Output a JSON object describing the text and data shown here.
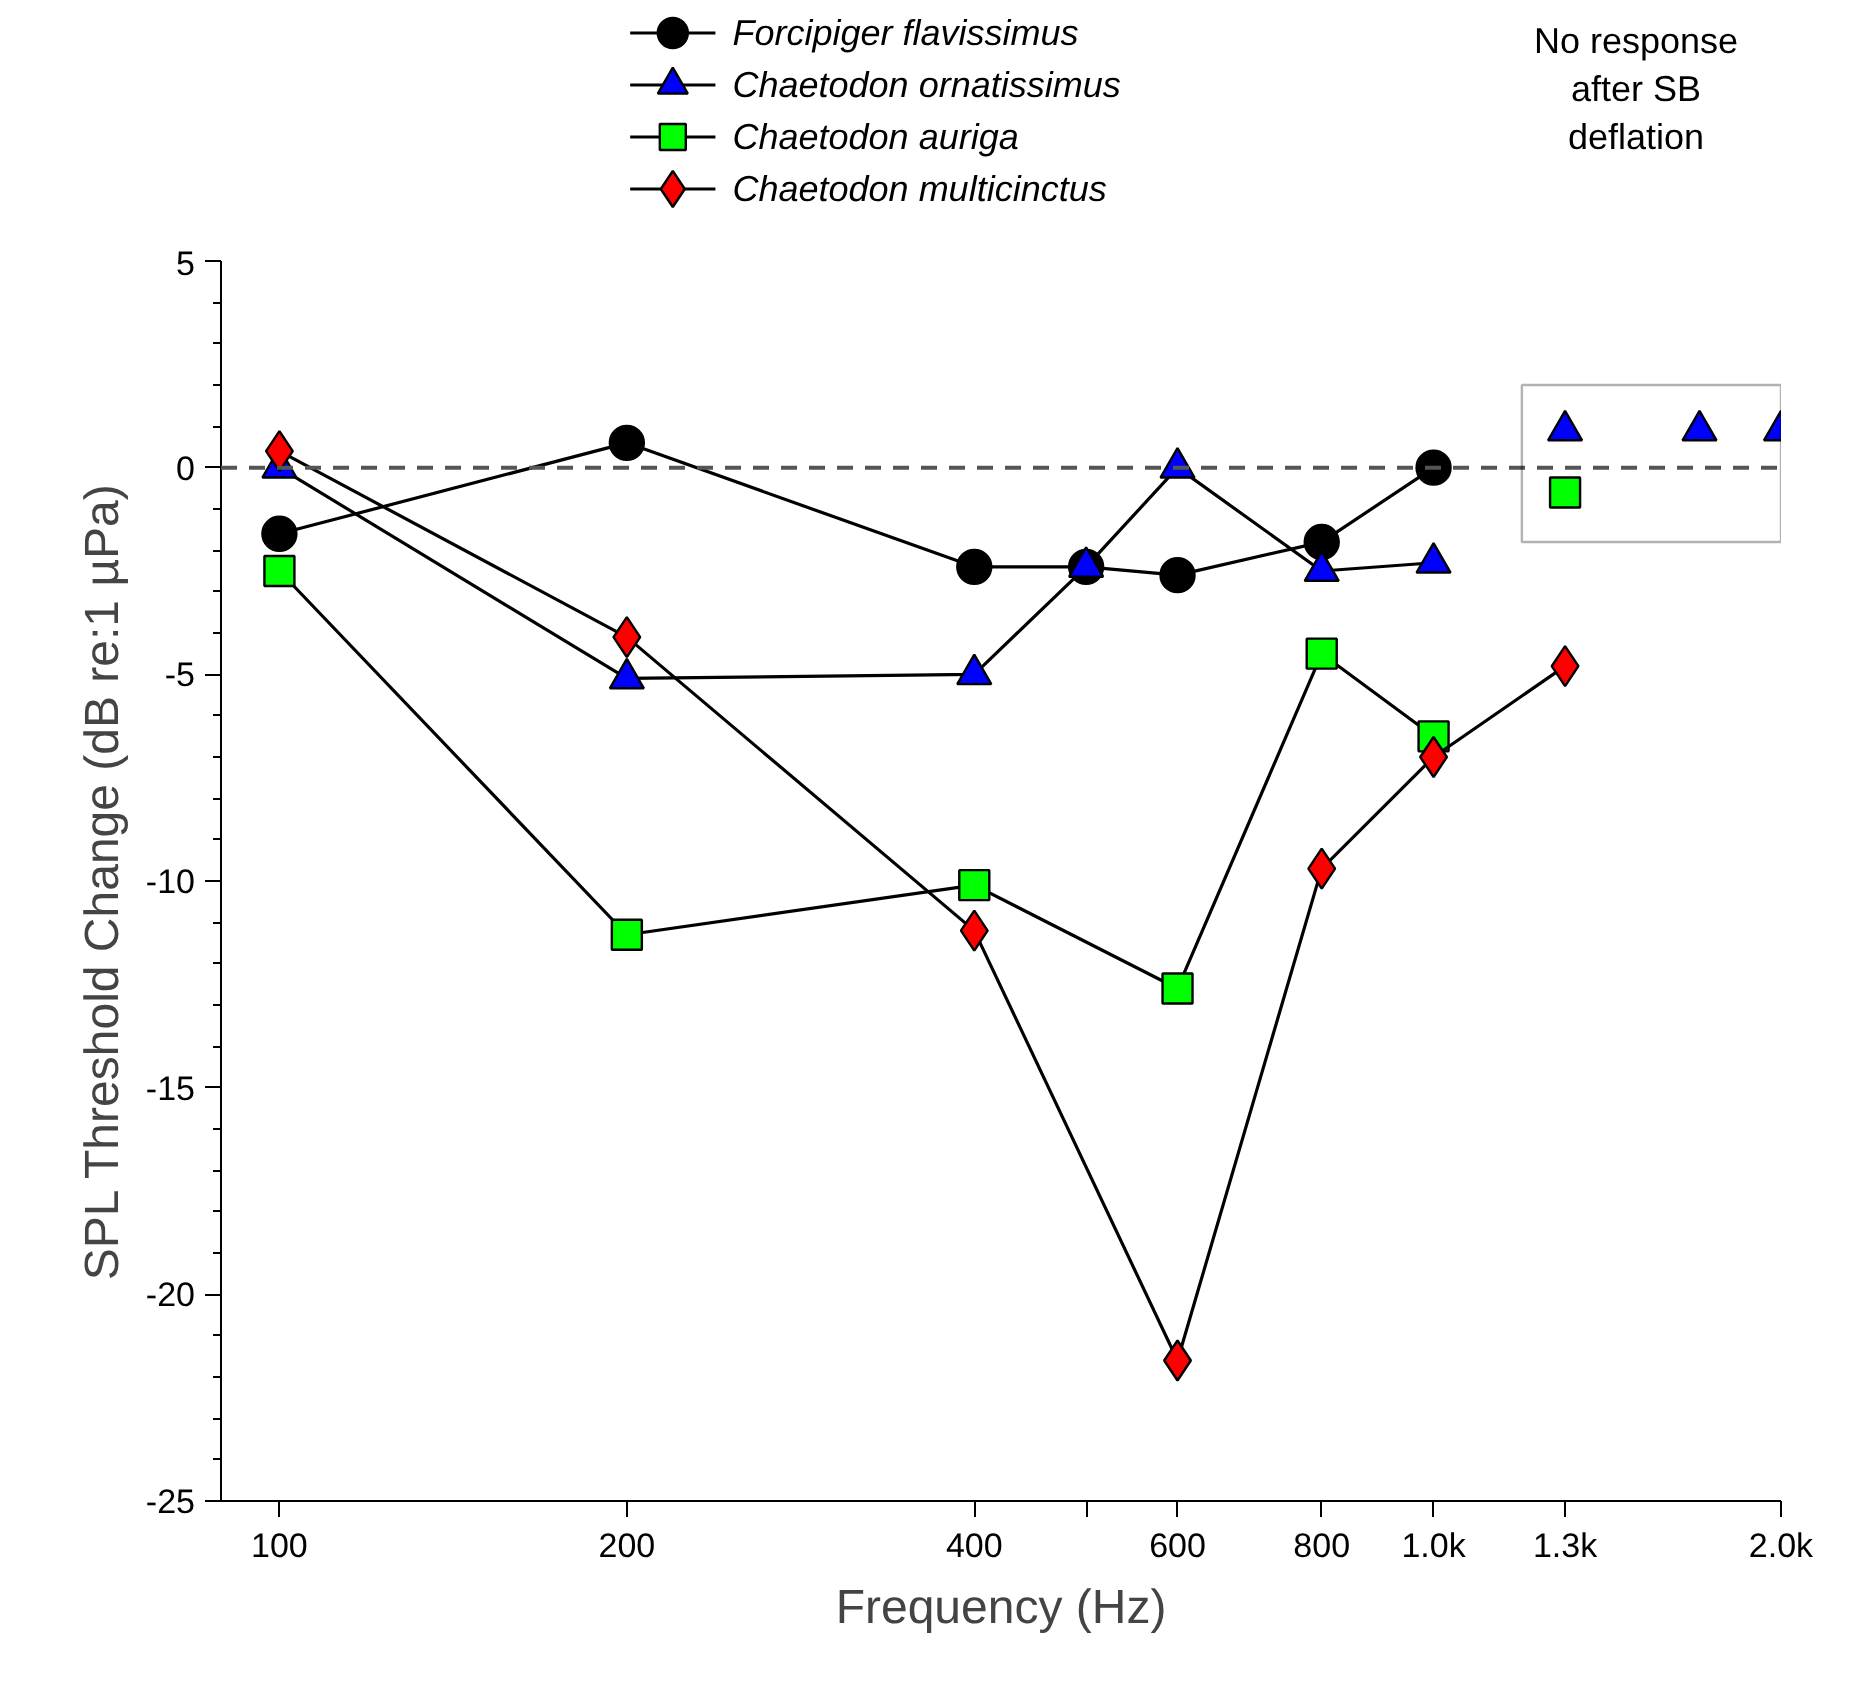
{
  "chart_data": {
    "type": "line",
    "xlabel": "Frequency (Hz)",
    "ylabel": "SPL Threshold Change (dB re:1 µPa)",
    "x": [
      100,
      200,
      400,
      500,
      600,
      800,
      1000,
      1300
    ],
    "log": "x",
    "xlim": [
      89,
      2000
    ],
    "ylim": [
      -25,
      5
    ],
    "xticks": [
      100,
      200,
      400,
      {
        "value": 500,
        "label": null
      },
      600,
      800,
      {
        "value": 1000,
        "label": "1.0k"
      },
      {
        "value": 1300,
        "label": "1.3k"
      },
      {
        "value": 2000,
        "label": "2.0k"
      }
    ],
    "yticks": [
      -25,
      -20,
      -15,
      -10,
      -5,
      0,
      5
    ],
    "grid": false,
    "legend": "top",
    "line_style": "solid",
    "series": [
      {
        "name": "Forcipiger flavissimus",
        "color": "#000000",
        "marker": "circle",
        "values": [
          -1.6,
          0.6,
          -2.4,
          -2.4,
          -2.6,
          -1.8,
          0.0,
          null
        ]
      },
      {
        "name": "Chaetodon ornatissimus",
        "color": "#0000ff",
        "marker": "triangle",
        "values": [
          0.0,
          -5.1,
          -5.0,
          -2.4,
          0.0,
          -2.5,
          -2.3,
          null
        ]
      },
      {
        "name": "Chaetodon auriga",
        "color": "#00ff00",
        "marker": "square",
        "values": [
          -2.5,
          -11.3,
          -10.1,
          null,
          -12.6,
          -4.5,
          -6.5,
          null
        ]
      },
      {
        "name": "Chaetodon multicinctus",
        "color": "#ff0000",
        "marker": "diamond",
        "values": [
          0.4,
          -4.1,
          -11.2,
          null,
          -21.6,
          -9.7,
          -7.0,
          -4.8
        ]
      },
      {
        "type": "scatter",
        "color": "#0000ff",
        "marker": "triangle",
        "x": [
          1300,
          1700,
          2000
        ],
        "values": [
          0.9,
          0.9,
          0.9
        ]
      },
      {
        "type": "scatter",
        "color": "#00ff00",
        "marker": "square",
        "x": [
          1300
        ],
        "values": [
          -0.6
        ]
      }
    ],
    "ref_lines": [
      {
        "axis": "y",
        "value": 0,
        "color": "#555555",
        "line_style": "dashed"
      }
    ],
    "annotations": [
      "No response after SB deflation"
    ]
  }
}
